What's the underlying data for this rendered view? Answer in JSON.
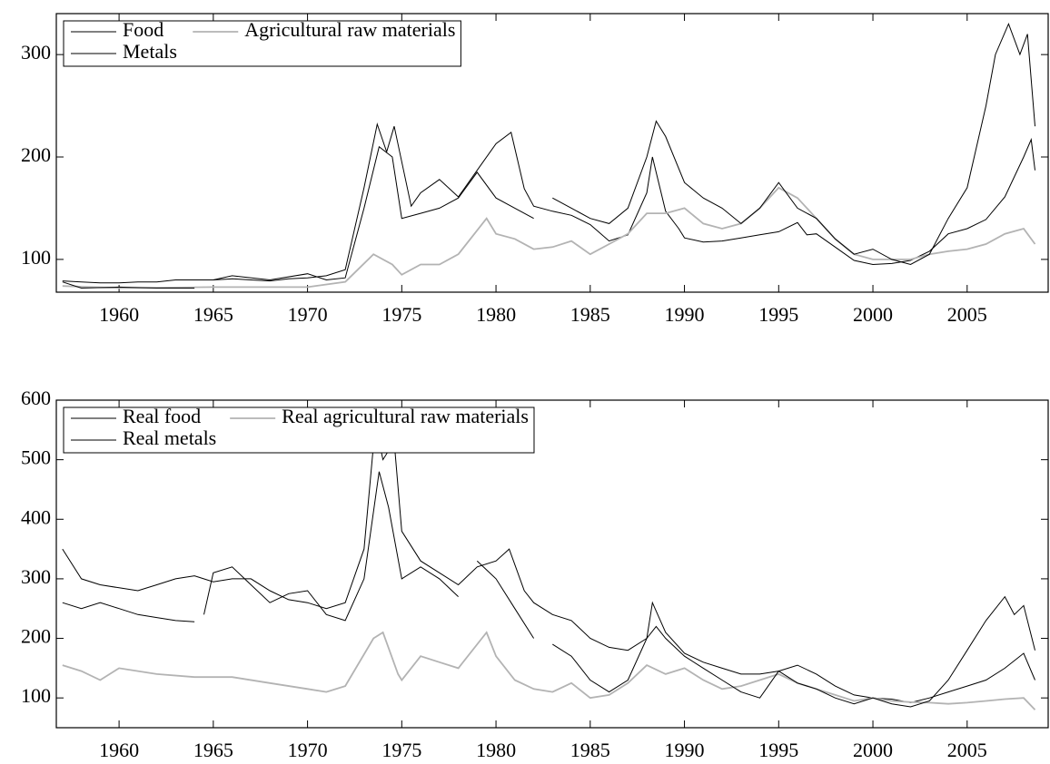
{
  "chart_data": [
    {
      "type": "line",
      "xlim": [
        1956.67,
        2009.3
      ],
      "ylim": [
        68,
        340
      ],
      "xticks": [
        1960,
        1965,
        1970,
        1975,
        1980,
        1985,
        1990,
        1995,
        2000,
        2005
      ],
      "yticks": [
        100,
        200,
        300
      ],
      "grid": false,
      "legend": "upper left",
      "series": [
        {
          "name": "Food",
          "color": "#000000",
          "x": [
            1957,
            1958,
            1959,
            1960,
            1961,
            1962,
            1963,
            1964,
            1965,
            1966,
            1967,
            1968,
            1969,
            1970,
            1971,
            1972,
            1973,
            1973.7,
            1974.2,
            1974.6,
            1975.5,
            1976,
            1977,
            1978,
            1979,
            1980,
            1980.8,
            1981.5,
            1982,
            1983,
            1984,
            1985,
            1986,
            1987,
            1988,
            1988.3,
            1989,
            1989.7,
            1990,
            1991,
            1992,
            1993,
            1994,
            1995,
            1996,
            1996.5,
            1997,
            1998,
            1999,
            2000,
            2001,
            2002,
            2003,
            2004,
            2005,
            2006,
            2007,
            2008,
            2008.4,
            2008.6
          ],
          "values": [
            79,
            78,
            77,
            77,
            78,
            78,
            80,
            80,
            80,
            81,
            80,
            79,
            81,
            82,
            84,
            90,
            170,
            232,
            205,
            230,
            152,
            165,
            178,
            161,
            187,
            213,
            224,
            169,
            152,
            147,
            143,
            134,
            118,
            124,
            165,
            200,
            147,
            130,
            121,
            117,
            118,
            121,
            124,
            127,
            136,
            124,
            125,
            112,
            99,
            95,
            96,
            99,
            108,
            125,
            130,
            139,
            161,
            200,
            217,
            187
          ]
        },
        {
          "name": "Agricultural raw materials",
          "color": "#b3b3b3",
          "x": [
            1957,
            1960,
            1965,
            1970,
            1972,
            1973.5,
            1974.5,
            1975,
            1976,
            1977,
            1978,
            1979.5,
            1980,
            1981,
            1982,
            1983,
            1984,
            1985,
            1986,
            1987,
            1988,
            1989,
            1990,
            1991,
            1992,
            1993,
            1994,
            1995,
            1996,
            1997,
            1998,
            1999,
            2000,
            2001,
            2002,
            2003,
            2004,
            2005,
            2006,
            2007,
            2008,
            2008.6
          ],
          "values": [
            74,
            72,
            73,
            73,
            78,
            105,
            95,
            85,
            95,
            95,
            105,
            140,
            125,
            120,
            110,
            112,
            118,
            105,
            115,
            125,
            145,
            145,
            150,
            135,
            130,
            135,
            150,
            170,
            160,
            140,
            120,
            105,
            100,
            100,
            100,
            105,
            108,
            110,
            115,
            125,
            130,
            115
          ]
        },
        {
          "name": "Metals",
          "color": "#000000",
          "x": [
            1957,
            1958,
            1960,
            1962,
            1964,
            1964.5,
            1965,
            1966,
            1968,
            1970,
            1971,
            1972,
            1973,
            1973.8,
            1974.5,
            1975,
            1976,
            1977,
            1978,
            1979,
            1980,
            1981,
            1982,
            1982.5,
            1983,
            1984,
            1985,
            1986,
            1987,
            1988,
            1988.5,
            1989,
            1990,
            1991,
            1992,
            1993,
            1994,
            1995,
            1996,
            1997,
            1998,
            1999,
            2000,
            2001,
            2002,
            2003,
            2004,
            2005,
            2006,
            2006.5,
            2007.2,
            2007.8,
            2008.2,
            2008.6
          ],
          "values": [
            78,
            72,
            73,
            72,
            72,
            null,
            80,
            84,
            80,
            86,
            80,
            82,
            150,
            210,
            200,
            140,
            145,
            150,
            160,
            185,
            160,
            150,
            140,
            null,
            160,
            150,
            140,
            135,
            150,
            200,
            235,
            220,
            175,
            160,
            150,
            135,
            150,
            175,
            150,
            140,
            120,
            105,
            110,
            100,
            95,
            105,
            140,
            170,
            250,
            300,
            330,
            300,
            320,
            230
          ]
        }
      ]
    },
    {
      "type": "line",
      "xlim": [
        1956.67,
        2009.3
      ],
      "ylim": [
        50,
        600
      ],
      "xticks": [
        1960,
        1965,
        1970,
        1975,
        1980,
        1985,
        1990,
        1995,
        2000,
        2005
      ],
      "yticks": [
        100,
        200,
        300,
        400,
        500,
        600
      ],
      "grid": false,
      "legend": "upper left",
      "series": [
        {
          "name": "Real food",
          "color": "#000000",
          "x": [
            1957,
            1958,
            1959,
            1960,
            1961,
            1962,
            1963,
            1964,
            1965,
            1966,
            1967,
            1968,
            1969,
            1970,
            1971,
            1972,
            1973,
            1973.6,
            1974,
            1974.6,
            1975,
            1976,
            1977,
            1978,
            1979,
            1980,
            1980.7,
            1981.5,
            1982,
            1983,
            1984,
            1985,
            1986,
            1987,
            1988,
            1988.3,
            1989,
            1990,
            1991,
            1992,
            1993,
            1994,
            1995,
            1996,
            1997,
            1998,
            1999,
            2000,
            2001,
            2002,
            2003,
            2004,
            2005,
            2006,
            2007,
            2008,
            2008.6
          ],
          "values": [
            350,
            300,
            290,
            285,
            280,
            290,
            300,
            305,
            295,
            300,
            300,
            280,
            265,
            260,
            250,
            260,
            350,
            560,
            500,
            530,
            380,
            330,
            310,
            290,
            320,
            330,
            350,
            280,
            260,
            240,
            230,
            200,
            185,
            180,
            200,
            260,
            210,
            175,
            160,
            150,
            140,
            140,
            145,
            155,
            140,
            120,
            105,
            100,
            98,
            92,
            100,
            110,
            120,
            130,
            150,
            175,
            130
          ]
        },
        {
          "name": "Real agricultural raw materials",
          "color": "#b3b3b3",
          "x": [
            1957,
            1958,
            1959,
            1960,
            1962,
            1964,
            1966,
            1968,
            1970,
            1971,
            1972,
            1973.5,
            1974,
            1974.8,
            1975,
            1976,
            1977,
            1978,
            1979.5,
            1980,
            1981,
            1982,
            1983,
            1984,
            1985,
            1986,
            1987,
            1988,
            1989,
            1990,
            1991,
            1992,
            1993,
            1994,
            1995,
            1996,
            1997,
            1998,
            1999,
            2000,
            2001,
            2002,
            2003,
            2004,
            2005,
            2006,
            2007,
            2008,
            2008.6
          ],
          "values": [
            155,
            145,
            130,
            150,
            140,
            135,
            135,
            125,
            115,
            110,
            120,
            200,
            210,
            140,
            130,
            170,
            160,
            150,
            210,
            170,
            130,
            115,
            110,
            125,
            100,
            105,
            125,
            155,
            140,
            150,
            130,
            115,
            120,
            130,
            140,
            125,
            115,
            105,
            95,
            100,
            95,
            93,
            92,
            90,
            92,
            95,
            98,
            100,
            80
          ]
        },
        {
          "name": "Real metals",
          "color": "#000000",
          "x": [
            1957,
            1958,
            1959,
            1960,
            1961,
            1962,
            1963,
            1964,
            1964.2,
            1964.5,
            1965,
            1966,
            1967,
            1968,
            1969,
            1970,
            1971,
            1972,
            1973,
            1973.8,
            1974.3,
            1975,
            1976,
            1977,
            1978,
            1978.5,
            1979,
            1980,
            1981,
            1982,
            1982.5,
            1983,
            1984,
            1985,
            1986,
            1987,
            1988,
            1988.5,
            1989,
            1990,
            1991,
            1992,
            1993,
            1994,
            1995,
            1996,
            1997,
            1998,
            1999,
            2000,
            2001,
            2002,
            2003,
            2004,
            2005,
            2006,
            2007,
            2007.5,
            2008,
            2008.6
          ],
          "values": [
            260,
            250,
            260,
            250,
            240,
            235,
            230,
            228,
            null,
            240,
            310,
            320,
            290,
            260,
            275,
            280,
            240,
            230,
            300,
            480,
            420,
            300,
            320,
            300,
            270,
            null,
            330,
            300,
            250,
            200,
            null,
            190,
            170,
            130,
            110,
            130,
            200,
            220,
            200,
            170,
            150,
            130,
            110,
            100,
            145,
            125,
            115,
            100,
            90,
            100,
            90,
            85,
            95,
            130,
            180,
            230,
            270,
            240,
            255,
            180
          ]
        }
      ]
    }
  ]
}
